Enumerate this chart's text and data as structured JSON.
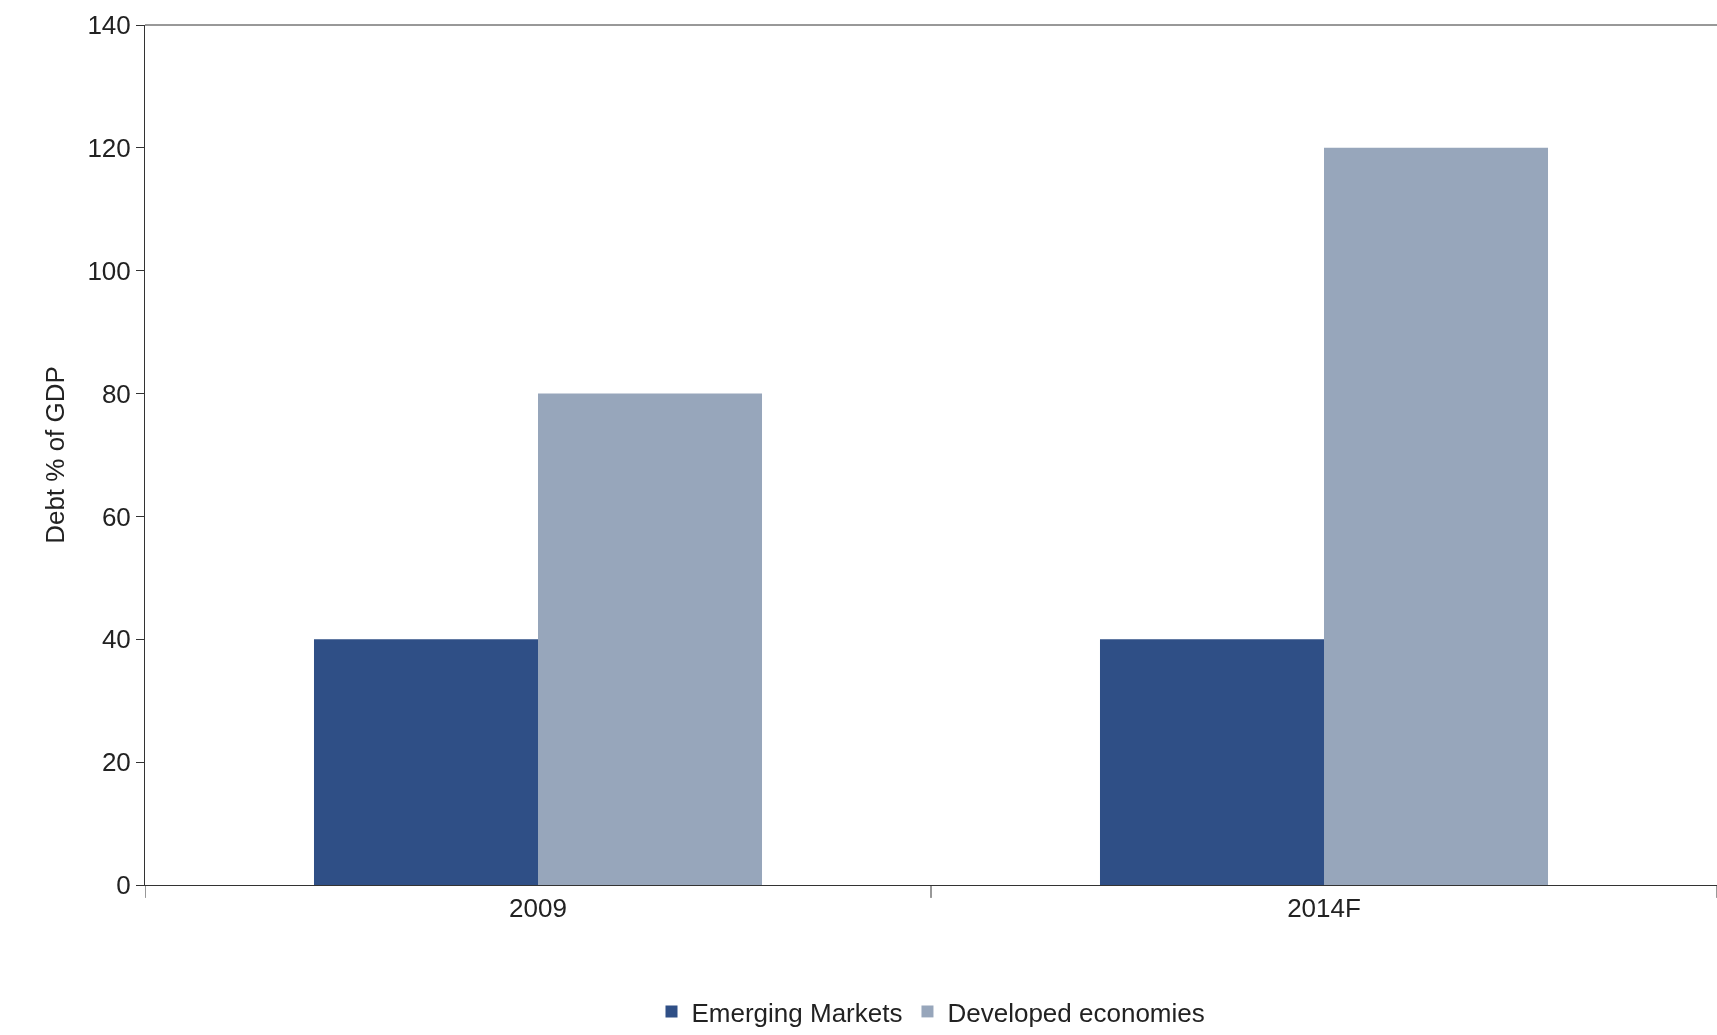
{
  "chart_data": {
    "type": "bar",
    "ylabel": "Debt % of GDP",
    "categories": [
      "2009",
      "2014F"
    ],
    "series": [
      {
        "name": "Emerging Markets",
        "color": "#2f4f86",
        "values": [
          40,
          40
        ]
      },
      {
        "name": "Developed economies",
        "color": "#97a6bb",
        "values": [
          80,
          120
        ]
      }
    ],
    "ylim": [
      0,
      140
    ],
    "yticks": [
      0,
      20,
      40,
      60,
      80,
      100,
      120,
      140
    ],
    "grid": false,
    "legend": "bottom"
  }
}
